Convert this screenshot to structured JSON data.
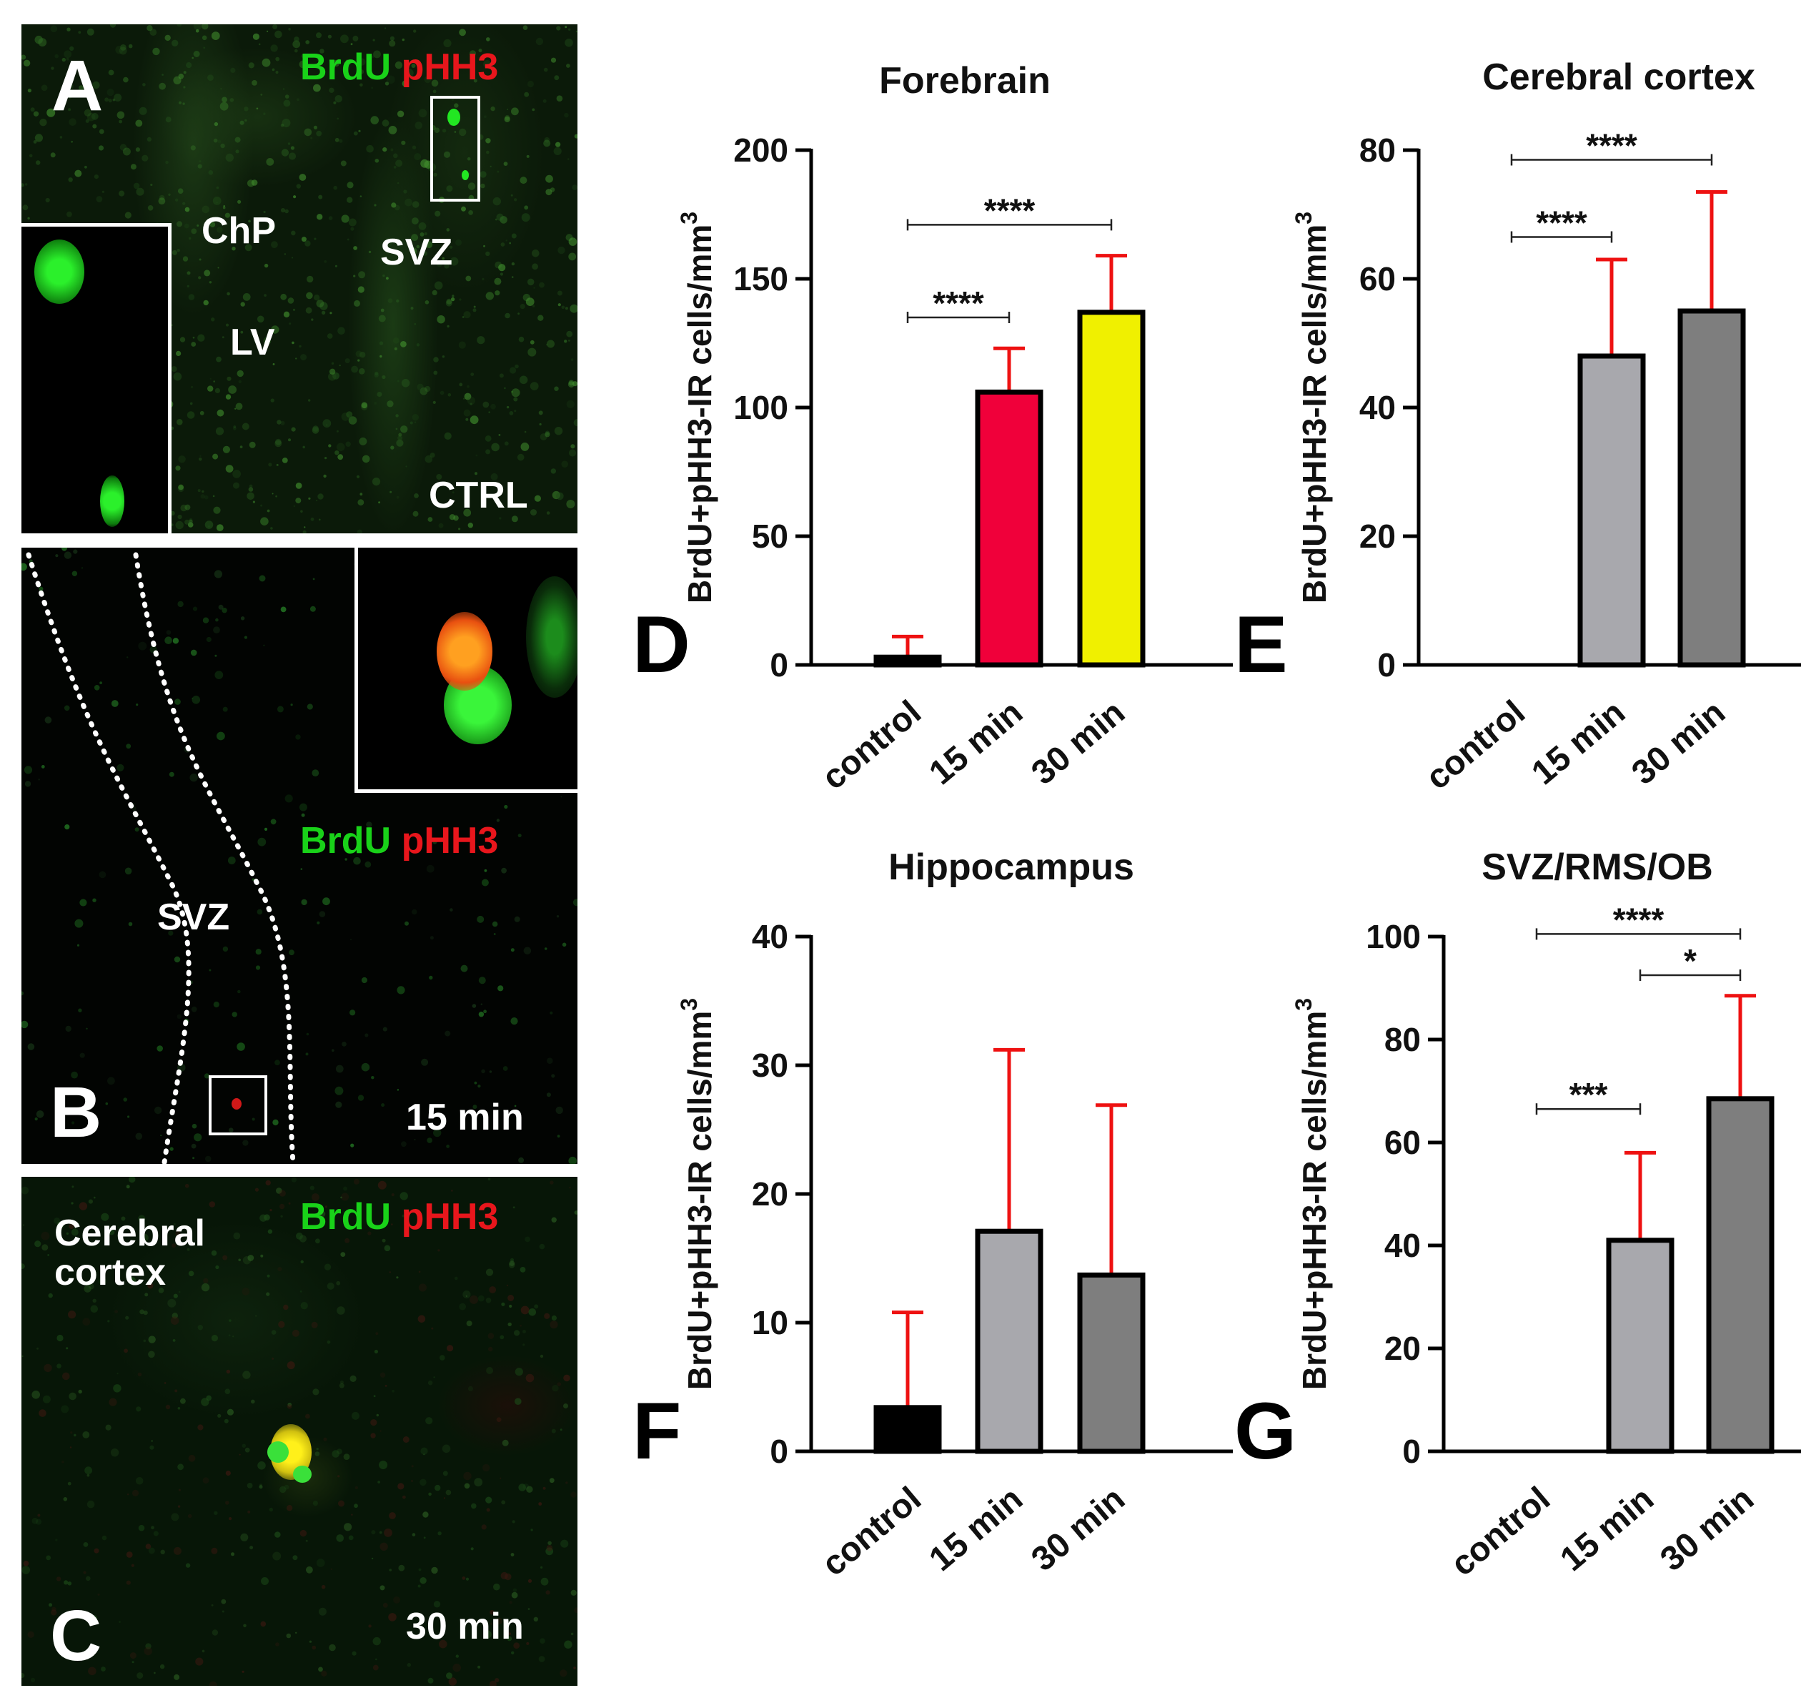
{
  "figure": {
    "panel_a": {
      "letter": "A",
      "stain_green": "BrdU",
      "stain_red": "pHH3",
      "labels": [
        "ChP",
        "SVZ",
        "LV",
        "CTRL"
      ]
    },
    "panel_b": {
      "letter": "B",
      "stain_green": "BrdU",
      "stain_red": "pHH3",
      "labels": [
        "SVZ",
        "15 min"
      ]
    },
    "panel_c": {
      "letter": "C",
      "stain_green": "BrdU",
      "stain_red": "pHH3",
      "labels": [
        "Cerebral\ncortex",
        "30 min"
      ]
    },
    "colors": {
      "green": "#19d219",
      "red": "#e8161c"
    }
  },
  "chart_data": [
    {
      "panel": "D",
      "type": "bar",
      "title": "Forebrain",
      "ylabel": "BrdU+pHH3-IR cells/mm",
      "ylabel_superscript": "3",
      "categories": [
        "control",
        "15 min",
        "30 min"
      ],
      "values": [
        3,
        106,
        137
      ],
      "errors": [
        8,
        17,
        22
      ],
      "bar_colors": [
        "#000000",
        "#f0003a",
        "#f0f000"
      ],
      "ylim": [
        0,
        200
      ],
      "yticks": [
        0,
        50,
        100,
        150,
        200
      ],
      "significance": [
        {
          "from": 0,
          "to": 1,
          "label": "****",
          "y": 135
        },
        {
          "from": 0,
          "to": 2,
          "label": "****",
          "y": 171
        }
      ]
    },
    {
      "panel": "E",
      "type": "bar",
      "title": "Cerebral cortex",
      "ylabel": "BrdU+pHH3-IR cells/mm",
      "ylabel_superscript": "3",
      "categories": [
        "control",
        "15 min",
        "30 min"
      ],
      "values": [
        0,
        48,
        55
      ],
      "errors": [
        0,
        15,
        18.5
      ],
      "bar_colors": [
        "#000000",
        "#a8a8ad",
        "#7e7e7e"
      ],
      "ylim": [
        0,
        80
      ],
      "yticks": [
        0,
        20,
        40,
        60,
        80
      ],
      "significance": [
        {
          "from": 0,
          "to": 1,
          "label": "****",
          "y": 66.5
        },
        {
          "from": 0,
          "to": 2,
          "label": "****",
          "y": 78.5
        }
      ]
    },
    {
      "panel": "F",
      "type": "bar",
      "title": "Hippocampus",
      "ylabel": "BrdU+pHH3-IR cells/mm",
      "ylabel_superscript": "3",
      "categories": [
        "control",
        "15 min",
        "30 min"
      ],
      "values": [
        3.4,
        17.1,
        13.7
      ],
      "errors": [
        7.4,
        14.1,
        13.2
      ],
      "bar_colors": [
        "#000000",
        "#a8a8ad",
        "#7e7e7e"
      ],
      "ylim": [
        0,
        40
      ],
      "yticks": [
        0,
        10,
        20,
        30,
        40
      ],
      "significance": []
    },
    {
      "panel": "G",
      "type": "bar",
      "title": "SVZ/RMS/OB",
      "ylabel": "BrdU+pHH3-IR cells/mm",
      "ylabel_superscript": "3",
      "categories": [
        "control",
        "15 min",
        "30 min"
      ],
      "values": [
        0,
        41,
        68.5
      ],
      "errors": [
        0,
        17,
        20
      ],
      "bar_colors": [
        "#000000",
        "#a8a8ad",
        "#7e7e7e"
      ],
      "ylim": [
        0,
        100
      ],
      "yticks": [
        0,
        20,
        40,
        60,
        80,
        100
      ],
      "significance": [
        {
          "from": 0,
          "to": 1,
          "label": "***",
          "y": 66.5
        },
        {
          "from": 0,
          "to": 2,
          "label": "****",
          "y": 100.5
        },
        {
          "from": 1,
          "to": 2,
          "label": "*",
          "y": 92.5
        }
      ]
    }
  ]
}
